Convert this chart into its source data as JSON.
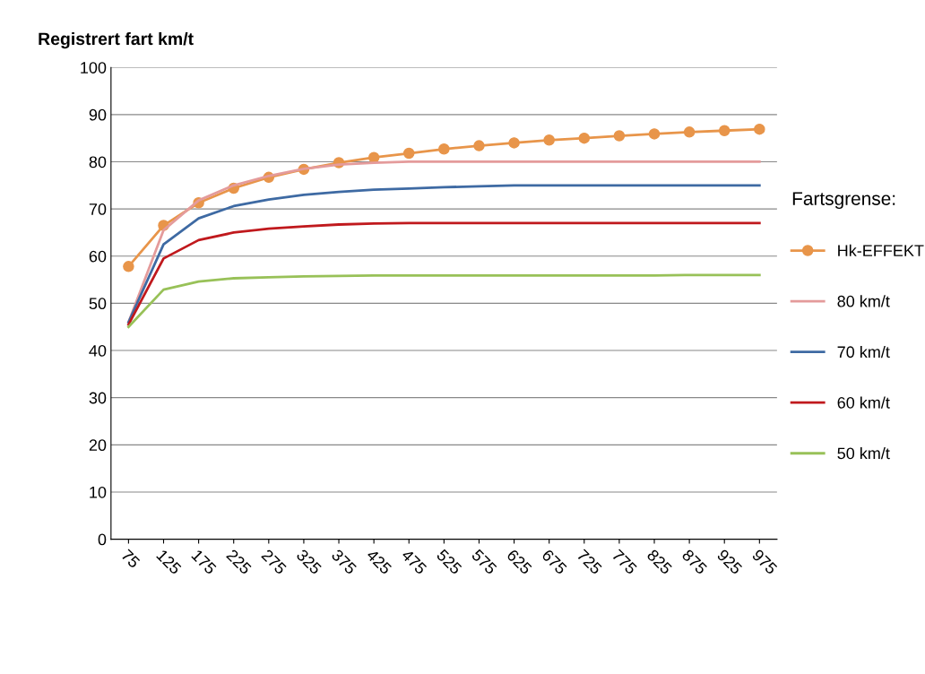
{
  "chart_data": {
    "type": "line",
    "ylabel": "Registrert fart km/t",
    "legend_title": "Fartsgrense:",
    "categories": [
      "75",
      "125",
      "175",
      "225",
      "275",
      "325",
      "375",
      "425",
      "475",
      "525",
      "575",
      "625",
      "675",
      "725",
      "775",
      "825",
      "875",
      "925",
      "975"
    ],
    "series": [
      {
        "name": "Hk-EFFEKT",
        "color": "#e8954a",
        "marker": "circle",
        "values": [
          57.8,
          66.5,
          71.3,
          74.4,
          76.7,
          78.4,
          79.8,
          80.9,
          81.8,
          82.7,
          83.4,
          84.0,
          84.6,
          85.0,
          85.5,
          85.9,
          86.3,
          86.6,
          86.9
        ]
      },
      {
        "name": "80 km/t",
        "color": "#e49b9b",
        "values": [
          46.0,
          65.5,
          71.8,
          75.0,
          77.0,
          78.5,
          79.4,
          79.8,
          80.0,
          80.0,
          80.0,
          80.0,
          80.0,
          80.0,
          80.0,
          80.0,
          80.0,
          80.0,
          80.0
        ]
      },
      {
        "name": "70 km/t",
        "color": "#3e6aa3",
        "values": [
          46.0,
          62.5,
          68.0,
          70.6,
          72.0,
          73.0,
          73.6,
          74.1,
          74.3,
          74.6,
          74.8,
          75.0,
          75.0,
          75.0,
          75.0,
          75.0,
          75.0,
          75.0,
          75.0
        ]
      },
      {
        "name": "60 km/t",
        "color": "#c0191d",
        "values": [
          45.5,
          59.5,
          63.4,
          65.0,
          65.8,
          66.3,
          66.7,
          66.9,
          67.0,
          67.0,
          67.0,
          67.0,
          67.0,
          67.0,
          67.0,
          67.0,
          67.0,
          67.0,
          67.0
        ]
      },
      {
        "name": "50 km/t",
        "color": "#98c158",
        "values": [
          45.0,
          52.9,
          54.6,
          55.3,
          55.5,
          55.7,
          55.8,
          55.9,
          55.9,
          55.9,
          55.9,
          55.9,
          55.9,
          55.9,
          55.9,
          55.9,
          56.0,
          56.0,
          56.0
        ]
      }
    ],
    "ylim": [
      0,
      100
    ],
    "yticks": [
      0,
      10,
      20,
      30,
      40,
      50,
      60,
      70,
      80,
      90,
      100
    ],
    "grid": "y",
    "legend": "right",
    "marker": "none",
    "line_style": "solid"
  }
}
